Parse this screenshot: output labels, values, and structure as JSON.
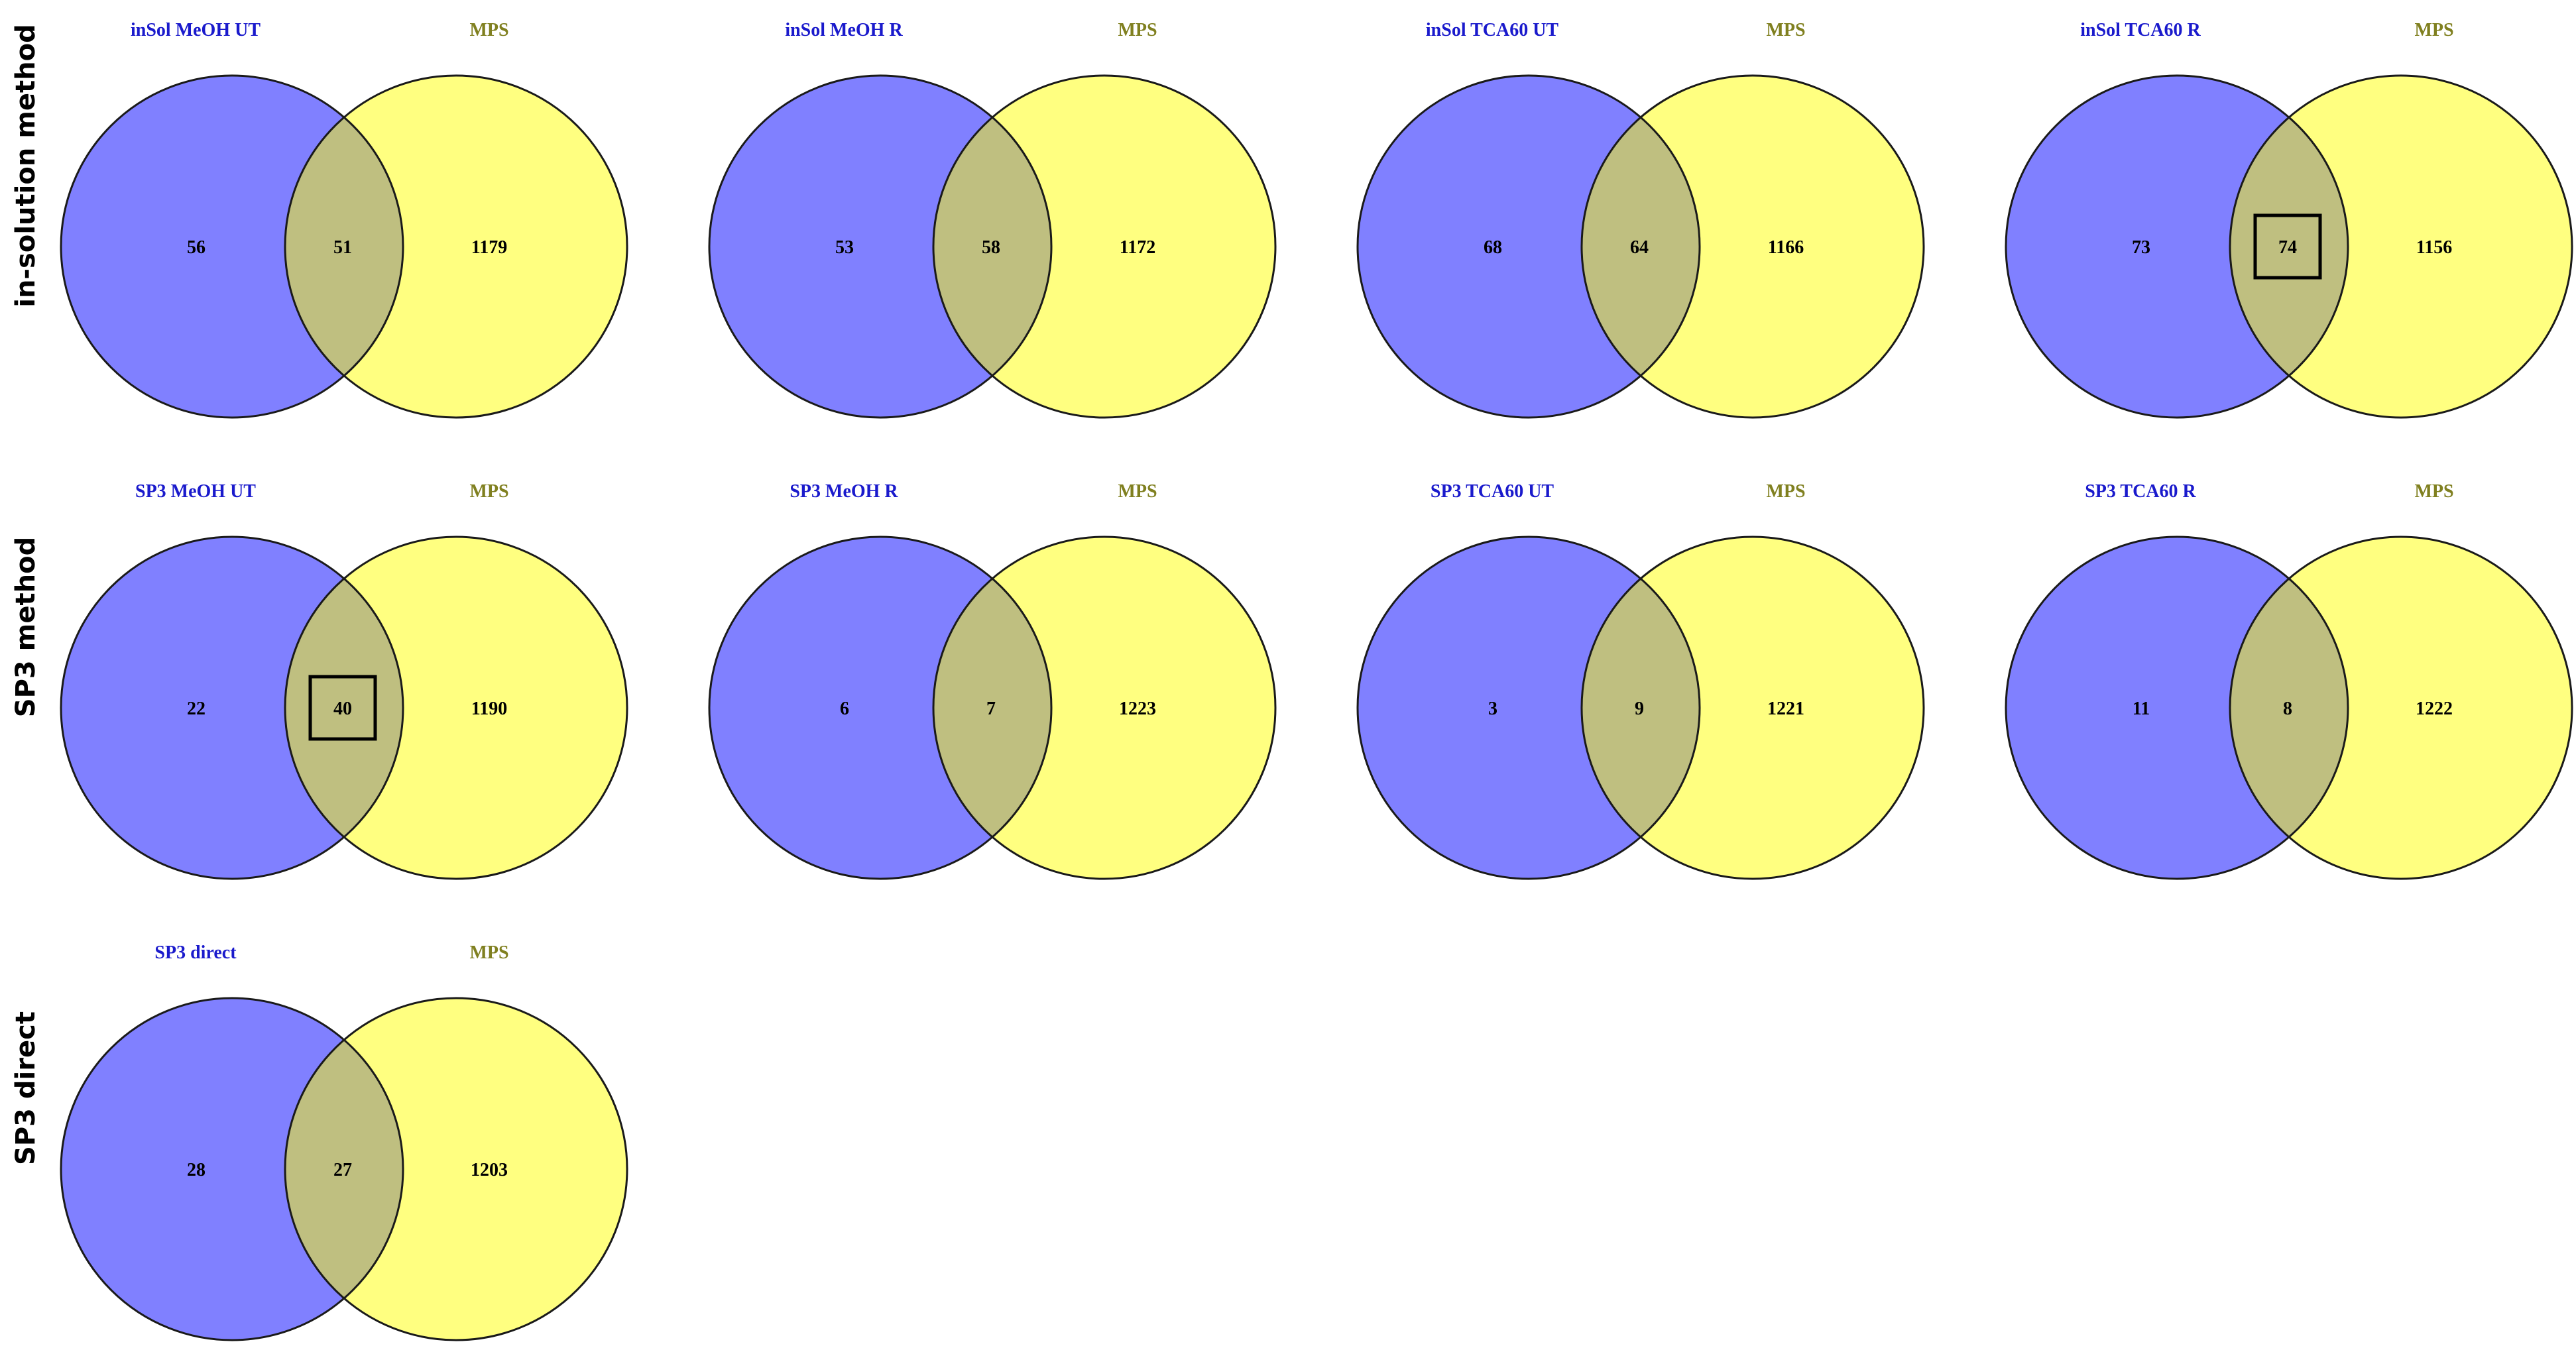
{
  "colors": {
    "set_a_fill": "#8080ff",
    "set_b_fill": "#ffff80",
    "overlap_fill": "#bfbf80",
    "set_a_label": "#1a1acc",
    "set_b_label": "#808020",
    "outline": "#1a1a1a"
  },
  "rows": [
    {
      "label": "in-solution method",
      "diagrams": [
        {
          "set_a": "inSol MeOH UT",
          "set_b": "MPS",
          "only_a": "56",
          "both": "51",
          "only_b": "1179",
          "highlight": false
        },
        {
          "set_a": "inSol MeOH R",
          "set_b": "MPS",
          "only_a": "53",
          "both": "58",
          "only_b": "1172",
          "highlight": false
        },
        {
          "set_a": "inSol TCA60 UT",
          "set_b": "MPS",
          "only_a": "68",
          "both": "64",
          "only_b": "1166",
          "highlight": false
        },
        {
          "set_a": "inSol TCA60 R",
          "set_b": "MPS",
          "only_a": "73",
          "both": "74",
          "only_b": "1156",
          "highlight": true
        }
      ]
    },
    {
      "label": "SP3 method",
      "diagrams": [
        {
          "set_a": "SP3 MeOH UT",
          "set_b": "MPS",
          "only_a": "22",
          "both": "40",
          "only_b": "1190",
          "highlight": true
        },
        {
          "set_a": "SP3 MeOH R",
          "set_b": "MPS",
          "only_a": "6",
          "both": "7",
          "only_b": "1223",
          "highlight": false
        },
        {
          "set_a": "SP3 TCA60 UT",
          "set_b": "MPS",
          "only_a": "3",
          "both": "9",
          "only_b": "1221",
          "highlight": false
        },
        {
          "set_a": "SP3 TCA60 R",
          "set_b": "MPS",
          "only_a": "11",
          "both": "8",
          "only_b": "1222",
          "highlight": false
        }
      ]
    },
    {
      "label": "SP3 direct",
      "diagrams": [
        {
          "set_a": "SP3 direct",
          "set_b": "MPS",
          "only_a": "28",
          "both": "27",
          "only_b": "1203",
          "highlight": false
        }
      ]
    }
  ]
}
